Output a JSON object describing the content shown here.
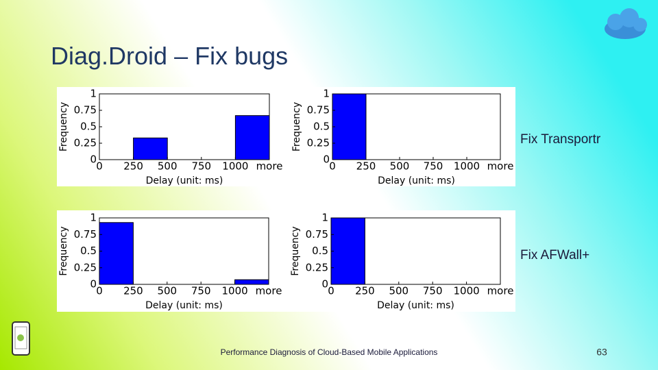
{
  "title": "Diag.Droid – Fix bugs",
  "captions": [
    "Fix Transportr",
    "Fix AFWall+"
  ],
  "footer": "Performance Diagnosis of Cloud-Based Mobile Applications",
  "page_number": "63",
  "chart_data": [
    {
      "type": "histogram",
      "xlabel": "Delay (unit: ms)",
      "ylabel": "Frequency",
      "color": "#0000ff",
      "bins": [
        0,
        250,
        500,
        750,
        1000,
        1250
      ],
      "values": [
        0,
        0.33,
        0,
        0,
        0.67
      ],
      "xlim": [
        0,
        1250
      ],
      "xticks": [
        0,
        250,
        500,
        750,
        1000,
        {
          "value": 1250,
          "label": "more"
        }
      ],
      "ylim": [
        0,
        1
      ],
      "yticks": [
        0,
        0.25,
        0.5,
        0.75,
        1
      ]
    },
    {
      "type": "histogram",
      "xlabel": "Delay (unit: ms)",
      "ylabel": "Frequency",
      "color": "#0000ff",
      "bins": [
        0,
        250,
        500,
        750,
        1000,
        1250
      ],
      "values": [
        1,
        0,
        0,
        0,
        0
      ],
      "xlim": [
        0,
        1250
      ],
      "xticks": [
        0,
        250,
        500,
        750,
        1000,
        {
          "value": 1250,
          "label": "more"
        }
      ],
      "ylim": [
        0,
        1
      ],
      "yticks": [
        0,
        0.25,
        0.5,
        0.75,
        1
      ]
    },
    {
      "type": "histogram",
      "xlabel": "Delay (unit: ms)",
      "ylabel": "Frequency",
      "color": "#0000ff",
      "bins": [
        0,
        250,
        500,
        750,
        1000,
        1250
      ],
      "values": [
        0.93,
        0,
        0,
        0,
        0.07
      ],
      "xlim": [
        0,
        1250
      ],
      "xticks": [
        0,
        250,
        500,
        750,
        1000,
        {
          "value": 1250,
          "label": "more"
        }
      ],
      "ylim": [
        0,
        1
      ],
      "yticks": [
        0,
        0.25,
        0.5,
        0.75,
        1
      ]
    },
    {
      "type": "histogram",
      "xlabel": "Delay (unit: ms)",
      "ylabel": "Frequency",
      "color": "#0000ff",
      "bins": [
        0,
        250,
        500,
        750,
        1000,
        1250
      ],
      "values": [
        1,
        0,
        0,
        0,
        0
      ],
      "xlim": [
        0,
        1250
      ],
      "xticks": [
        0,
        250,
        500,
        750,
        1000,
        {
          "value": 1250,
          "label": "more"
        }
      ],
      "ylim": [
        0,
        1
      ],
      "yticks": [
        0,
        0.25,
        0.5,
        0.75,
        1
      ]
    }
  ]
}
